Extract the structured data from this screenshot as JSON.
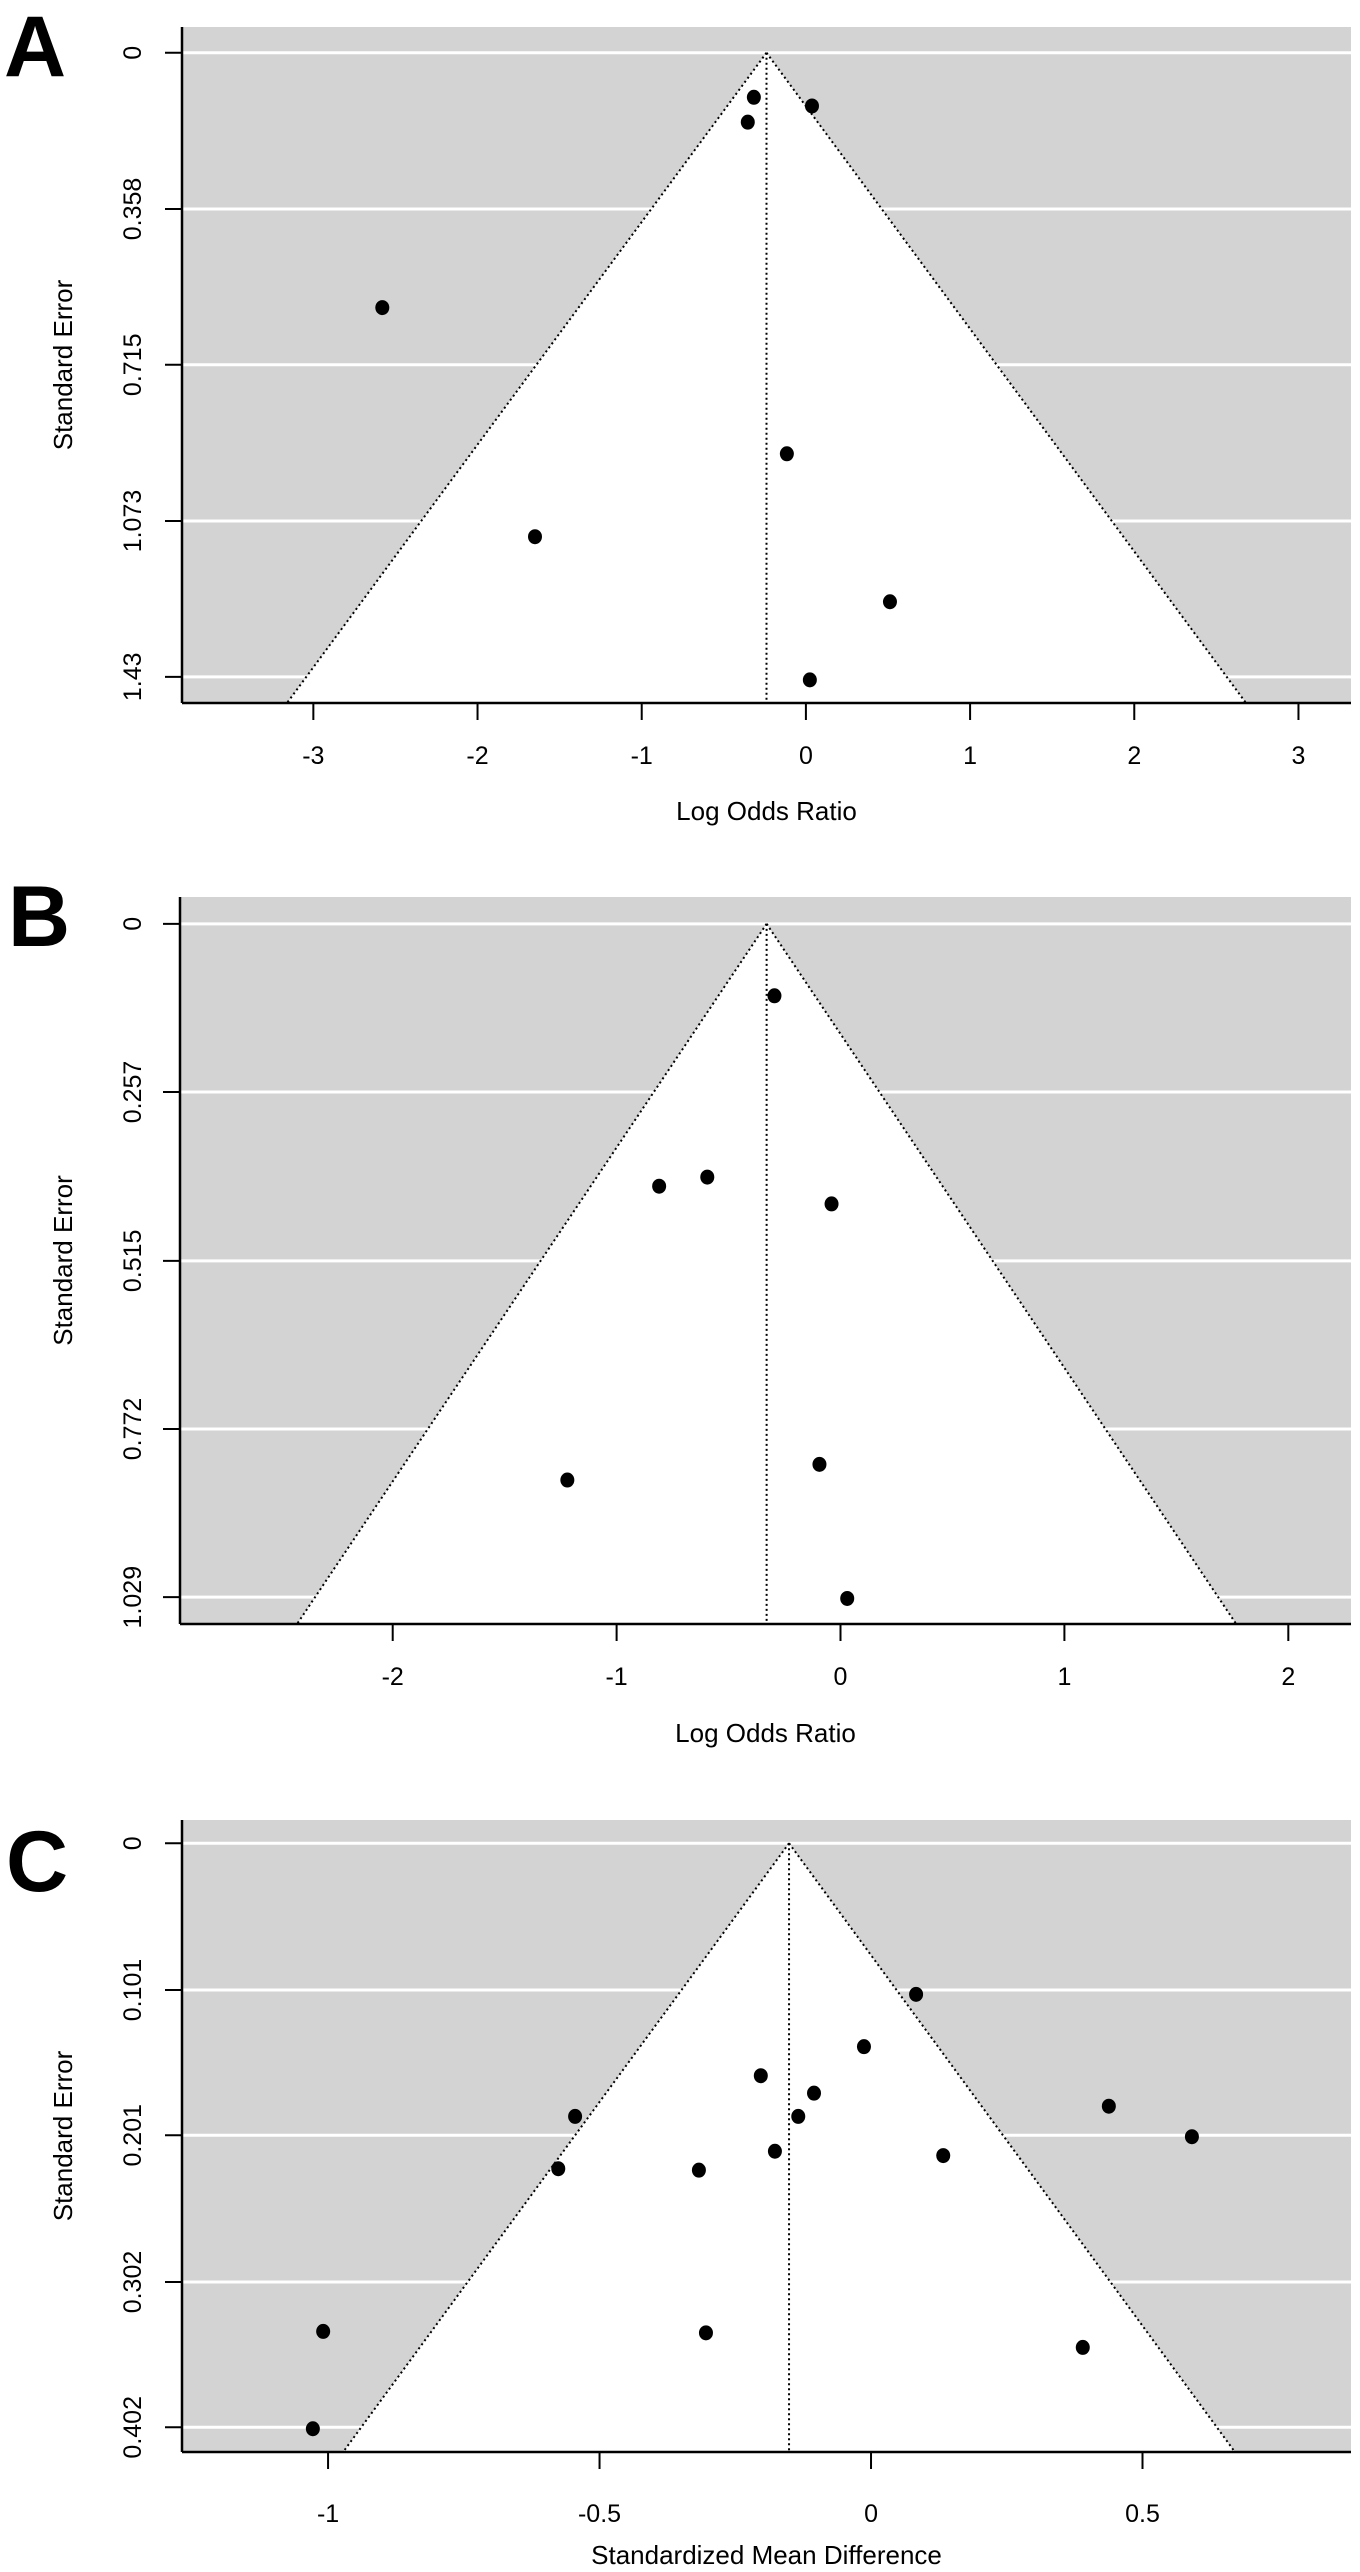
{
  "colors": {
    "region_fill": "#d3d3d3",
    "funnel_fill": "#ffffff",
    "gridline": "#ffffff",
    "point": "#000000",
    "axis": "#000000"
  },
  "chart_data": [
    {
      "type": "scatter",
      "subtype": "funnel",
      "panel_label": "A",
      "xlabel": "Log Odds Ratio",
      "ylabel": "Standard Error",
      "xlim": [
        -3.8,
        3.32
      ],
      "ylim": [
        1.49,
        -0.059
      ],
      "x_ticks": [
        -3,
        -2,
        -1,
        0,
        1,
        2,
        3
      ],
      "x_tick_labels": [
        "-3",
        "-2",
        "-1",
        "0",
        "1",
        "2",
        "3"
      ],
      "y_ticks": [
        0,
        0.358,
        0.715,
        1.073,
        1.43
      ],
      "y_tick_labels": [
        "0",
        "0.358",
        "0.715",
        "1.073",
        "1.43"
      ],
      "grid": true,
      "center_estimate": -0.24,
      "funnel_z": 1.96,
      "points": [
        {
          "x": -0.317,
          "se": 0.102
        },
        {
          "x": -0.354,
          "se": 0.159
        },
        {
          "x": 0.037,
          "se": 0.122
        },
        {
          "x": -2.58,
          "se": 0.584
        },
        {
          "x": -0.116,
          "se": 0.919
        },
        {
          "x": -1.65,
          "se": 1.109
        },
        {
          "x": 0.512,
          "se": 1.258
        },
        {
          "x": 0.024,
          "se": 1.437
        }
      ]
    },
    {
      "type": "scatter",
      "subtype": "funnel",
      "panel_label": "B",
      "xlabel": "Log Odds Ratio",
      "ylabel": "Standard Error",
      "xlim": [
        -2.95,
        2.28
      ],
      "ylim": [
        1.07,
        -0.041
      ],
      "x_ticks": [
        -2,
        -1,
        0,
        1,
        2
      ],
      "x_tick_labels": [
        "-2",
        "-1",
        "0",
        "1",
        "2"
      ],
      "y_ticks": [
        0,
        0.257,
        0.515,
        0.772,
        1.029
      ],
      "y_tick_labels": [
        "0",
        "0.257",
        "0.515",
        "0.772",
        "1.029"
      ],
      "grid": true,
      "center_estimate": -0.33,
      "funnel_z": 1.96,
      "points": [
        {
          "x": -0.295,
          "se": 0.11
        },
        {
          "x": -0.81,
          "se": 0.401
        },
        {
          "x": -0.595,
          "se": 0.387
        },
        {
          "x": -0.04,
          "se": 0.428
        },
        {
          "x": -1.22,
          "se": 0.85
        },
        {
          "x": -0.094,
          "se": 0.826
        },
        {
          "x": 0.03,
          "se": 1.031
        }
      ]
    },
    {
      "type": "scatter",
      "subtype": "funnel",
      "panel_label": "C",
      "xlabel": "Standardized Mean Difference",
      "ylabel": "Standard Error",
      "xlim": [
        -1.269,
        0.884
      ],
      "ylim": [
        0.419,
        -0.016
      ],
      "x_ticks": [
        -1,
        -0.5,
        0,
        0.5
      ],
      "x_tick_labels": [
        "-1",
        "-0.5",
        "0",
        "0.5"
      ],
      "y_ticks": [
        0,
        0.101,
        0.201,
        0.302,
        0.402
      ],
      "y_tick_labels": [
        "0",
        "0.101",
        "0.201",
        "0.302",
        "0.402"
      ],
      "grid": true,
      "center_estimate": -0.151,
      "funnel_z": 1.96,
      "points": [
        {
          "x": 0.083,
          "se": 0.104
        },
        {
          "x": -0.013,
          "se": 0.14
        },
        {
          "x": -0.203,
          "se": 0.16
        },
        {
          "x": -0.105,
          "se": 0.172
        },
        {
          "x": -0.134,
          "se": 0.188
        },
        {
          "x": -0.545,
          "se": 0.188
        },
        {
          "x": -0.177,
          "se": 0.212
        },
        {
          "x": 0.133,
          "se": 0.215
        },
        {
          "x": -0.576,
          "se": 0.224
        },
        {
          "x": -0.317,
          "se": 0.225
        },
        {
          "x": 0.438,
          "se": 0.181
        },
        {
          "x": 0.591,
          "se": 0.202
        },
        {
          "x": -1.009,
          "se": 0.336
        },
        {
          "x": -0.304,
          "se": 0.337
        },
        {
          "x": 0.39,
          "se": 0.347
        },
        {
          "x": -1.028,
          "se": 0.403
        }
      ]
    }
  ]
}
